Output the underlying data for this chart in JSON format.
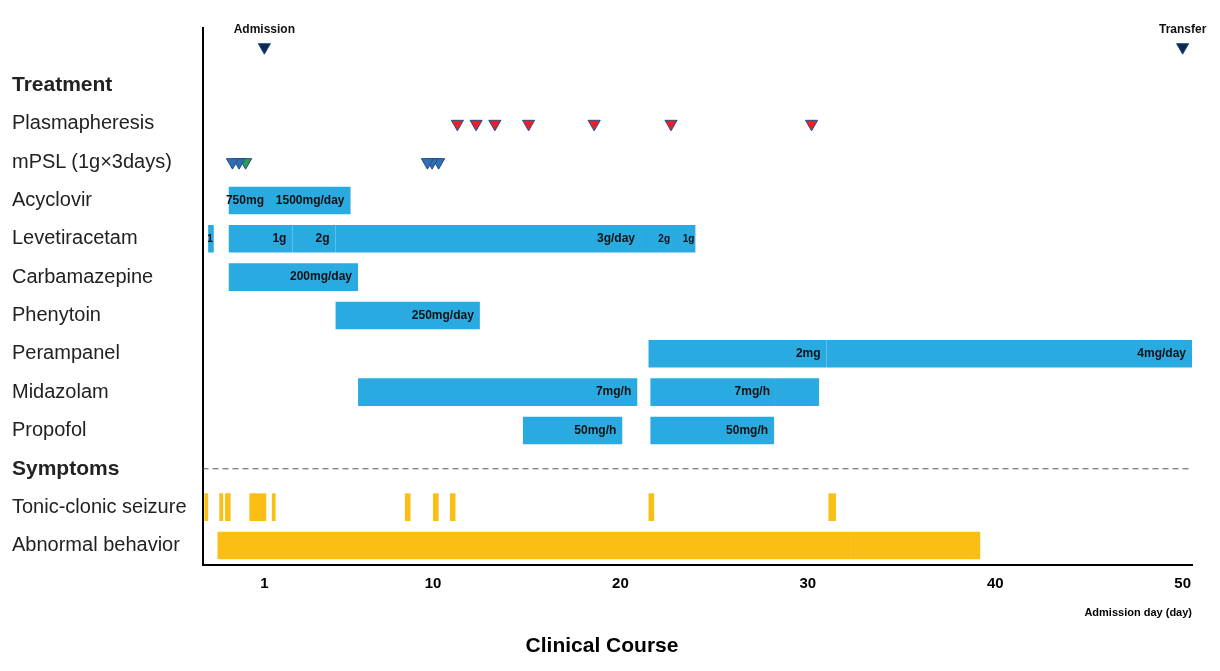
{
  "chart_data": {
    "type": "bar",
    "orientation": "horizontal",
    "title": "Clinical Course",
    "xlabel": "Admission day (day)",
    "categories": [
      null,
      "Treatment",
      "Plasmapheresis",
      "mPSL (1g×3days)",
      "Acyclovir",
      "Levetiracetam",
      "Carbamazepine",
      "Phenytoin",
      "Perampanel",
      "Midazolam",
      "Propofol",
      "Symptoms",
      "Tonic-clonic seizure",
      "Abnormal behavior"
    ],
    "xlim": [
      -2.3,
      50.5
    ],
    "xticks": [
      1,
      10,
      20,
      30,
      40,
      50
    ],
    "grid": false,
    "legend": false,
    "annotations": [
      "Admission",
      "Transfer",
      {
        "text": "750mg",
        "x": 1.3,
        "y": "Acyclovir"
      },
      {
        "text": "1500mg/day",
        "x": 5.6,
        "y": "Acyclovir"
      },
      {
        "text": "1",
        "x": -1.7,
        "y": "Levetiracetam"
      },
      {
        "text": "1g",
        "x": 2.5,
        "y": "Levetiracetam"
      },
      {
        "text": "2g",
        "x": 4.8,
        "y": "Levetiracetam"
      },
      {
        "text": "3g/day",
        "x": 21.1,
        "y": "Levetiracetam"
      },
      {
        "text": "2g",
        "x": 22.7,
        "y": "Levetiracetam"
      },
      {
        "text": "1g",
        "x": 24.0,
        "y": "Levetiracetam"
      },
      {
        "text": "200mg/day",
        "x": 6.0,
        "y": "Carbamazepine"
      },
      {
        "text": "250mg/day",
        "x": 12.5,
        "y": "Phenytoin"
      },
      {
        "text": "2mg",
        "x": 31.0,
        "y": "Perampanel"
      },
      {
        "text": "4mg/day",
        "x": 50.5,
        "y": "Perampanel"
      },
      {
        "text": "7mg/h",
        "x": 20.9,
        "y": "Midazolam"
      },
      {
        "text": "7mg/h",
        "x": 28.3,
        "y": "Midazolam"
      },
      {
        "text": "50mg/h",
        "x": 20.1,
        "y": "Propofol"
      },
      {
        "text": "50mg/h",
        "x": 28.2,
        "y": "Propofol"
      }
    ],
    "ref_lines": [
      {
        "axis": "y",
        "value": "Symptoms",
        "line_style": "dashed",
        "color": "#555555"
      }
    ],
    "series": [
      {
        "colors": [
          null,
          null,
          null,
          null,
          "#29abe2",
          "#29abe2",
          "#29abe2",
          "#29abe2",
          "#29abe2",
          "#29abe2",
          "#29abe2",
          null,
          "#fbbe14",
          "#fbbe14"
        ],
        "base": [
          null,
          null,
          null,
          null,
          -0.9,
          -2.0,
          -0.9,
          4.8,
          21.5,
          6.0,
          14.8,
          null,
          -2.2,
          -1.5
        ],
        "values": [
          null,
          null,
          null,
          null,
          2.2,
          0.3,
          6.9,
          7.7,
          9.5,
          14.9,
          5.3,
          null,
          0.2,
          33.8
        ]
      },
      {
        "colors": [
          null,
          null,
          null,
          null,
          "#29abe2",
          "#29abe2",
          null,
          null,
          "#29abe2",
          "#29abe2",
          "#29abe2",
          null,
          "#fbbe14",
          "#fbbe14"
        ],
        "base": [
          null,
          null,
          null,
          null,
          1.3,
          -0.9,
          null,
          null,
          31.0,
          21.6,
          21.6,
          null,
          -1.4,
          32.3
        ],
        "values": [
          null,
          null,
          null,
          null,
          4.3,
          3.4,
          null,
          null,
          19.5,
          6.7,
          6.6,
          null,
          0.2,
          6.9
        ]
      },
      {
        "colors": [
          null,
          null,
          null,
          null,
          null,
          "#29abe2",
          null,
          null,
          null,
          "#29abe2",
          null,
          null,
          "#fbbe14",
          null
        ],
        "base": [
          null,
          null,
          null,
          null,
          null,
          2.5,
          null,
          null,
          null,
          28.3,
          null,
          null,
          -1.1,
          null
        ],
        "values": [
          null,
          null,
          null,
          null,
          null,
          2.3,
          null,
          null,
          null,
          2.3,
          null,
          null,
          0.3,
          null
        ]
      },
      {
        "colors": [
          null,
          null,
          null,
          null,
          null,
          "#29abe2",
          null,
          null,
          null,
          null,
          null,
          null,
          "#fbbe14",
          null
        ],
        "base": [
          null,
          null,
          null,
          null,
          null,
          4.8,
          null,
          null,
          null,
          null,
          null,
          null,
          0.2,
          null
        ],
        "values": [
          null,
          null,
          null,
          null,
          null,
          16.3,
          null,
          null,
          null,
          null,
          null,
          null,
          0.9,
          null
        ]
      },
      {
        "colors": [
          null,
          null,
          null,
          null,
          null,
          "#29abe2",
          null,
          null,
          null,
          null,
          null,
          null,
          "#fbbe14",
          null
        ],
        "base": [
          null,
          null,
          null,
          null,
          null,
          21.1,
          null,
          null,
          null,
          null,
          null,
          null,
          1.4,
          null
        ],
        "values": [
          null,
          null,
          null,
          null,
          null,
          1.6,
          null,
          null,
          null,
          null,
          null,
          null,
          0.2,
          null
        ]
      },
      {
        "colors": [
          null,
          null,
          null,
          null,
          null,
          "#29abe2",
          null,
          null,
          null,
          null,
          null,
          null,
          "#fbbe14",
          null
        ],
        "base": [
          null,
          null,
          null,
          null,
          null,
          22.7,
          null,
          null,
          null,
          null,
          null,
          null,
          8.5,
          null
        ],
        "values": [
          null,
          null,
          null,
          null,
          null,
          1.3,
          null,
          null,
          null,
          null,
          null,
          null,
          0.3,
          null
        ]
      },
      {
        "color": "#fbbe14",
        "base": [
          null,
          null,
          null,
          null,
          null,
          null,
          null,
          null,
          null,
          null,
          null,
          null,
          10.0,
          null
        ],
        "values": [
          null,
          null,
          null,
          null,
          null,
          null,
          null,
          null,
          null,
          null,
          null,
          null,
          0.3,
          null
        ]
      },
      {
        "color": "#fbbe14",
        "base": [
          null,
          null,
          null,
          null,
          null,
          null,
          null,
          null,
          null,
          null,
          null,
          null,
          10.9,
          null
        ],
        "values": [
          null,
          null,
          null,
          null,
          null,
          null,
          null,
          null,
          null,
          null,
          null,
          null,
          0.3,
          null
        ]
      },
      {
        "color": "#fbbe14",
        "base": [
          null,
          null,
          null,
          null,
          null,
          null,
          null,
          null,
          null,
          null,
          null,
          null,
          21.5,
          null
        ],
        "values": [
          null,
          null,
          null,
          null,
          null,
          null,
          null,
          null,
          null,
          null,
          null,
          null,
          0.3,
          null
        ]
      },
      {
        "color": "#fbbe14",
        "base": [
          null,
          null,
          null,
          null,
          null,
          null,
          null,
          null,
          null,
          null,
          null,
          null,
          31.1,
          null
        ],
        "values": [
          null,
          null,
          null,
          null,
          null,
          null,
          null,
          null,
          null,
          null,
          null,
          null,
          0.4,
          null
        ]
      },
      {
        "type": "scatter",
        "marker": "triangle",
        "colors": [
          "#0d2a4a",
          null,
          "#e8202a",
          "#2f6fb0",
          null,
          null,
          null,
          null,
          null,
          null,
          null,
          null,
          null,
          null
        ],
        "values": [
          1,
          null,
          11.3,
          -0.7,
          null,
          null,
          null,
          null,
          null,
          null,
          null,
          null,
          null,
          null
        ]
      },
      {
        "type": "scatter",
        "marker": "triangle",
        "colors": [
          "#0d2a4a",
          null,
          "#e8202a",
          "#2f6fb0",
          null,
          null,
          null,
          null,
          null,
          null,
          null,
          null,
          null,
          null
        ],
        "values": [
          50,
          null,
          12.3,
          -0.35,
          null,
          null,
          null,
          null,
          null,
          null,
          null,
          null,
          null,
          null
        ]
      },
      {
        "type": "scatter",
        "marker": "triangle",
        "colors": [
          null,
          null,
          "#e8202a",
          "#2e9e4a",
          null,
          null,
          null,
          null,
          null,
          null,
          null,
          null,
          null,
          null
        ],
        "values": [
          null,
          null,
          13.3,
          0.0,
          null,
          null,
          null,
          null,
          null,
          null,
          null,
          null,
          null,
          null
        ]
      },
      {
        "type": "scatter",
        "marker": "triangle",
        "colors": [
          null,
          null,
          "#e8202a",
          "#2f6fb0",
          null,
          null,
          null,
          null,
          null,
          null,
          null,
          null,
          null,
          null
        ],
        "values": [
          null,
          null,
          15.1,
          9.7,
          null,
          null,
          null,
          null,
          null,
          null,
          null,
          null,
          null,
          null
        ]
      },
      {
        "type": "scatter",
        "marker": "triangle",
        "colors": [
          null,
          null,
          "#e8202a",
          "#2f6fb0",
          null,
          null,
          null,
          null,
          null,
          null,
          null,
          null,
          null,
          null
        ],
        "values": [
          null,
          null,
          18.6,
          9.95,
          null,
          null,
          null,
          null,
          null,
          null,
          null,
          null,
          null,
          null
        ]
      },
      {
        "type": "scatter",
        "marker": "triangle",
        "colors": [
          null,
          null,
          "#e8202a",
          "#2f6fb0",
          null,
          null,
          null,
          null,
          null,
          null,
          null,
          null,
          null,
          null
        ],
        "values": [
          null,
          null,
          22.7,
          10.3,
          null,
          null,
          null,
          null,
          null,
          null,
          null,
          null,
          null,
          null
        ]
      },
      {
        "type": "scatter",
        "marker": "triangle",
        "color": "#e8202a",
        "values": [
          null,
          null,
          30.2,
          null,
          null,
          null,
          null,
          null,
          null,
          null,
          null,
          null,
          null,
          null
        ]
      }
    ]
  }
}
